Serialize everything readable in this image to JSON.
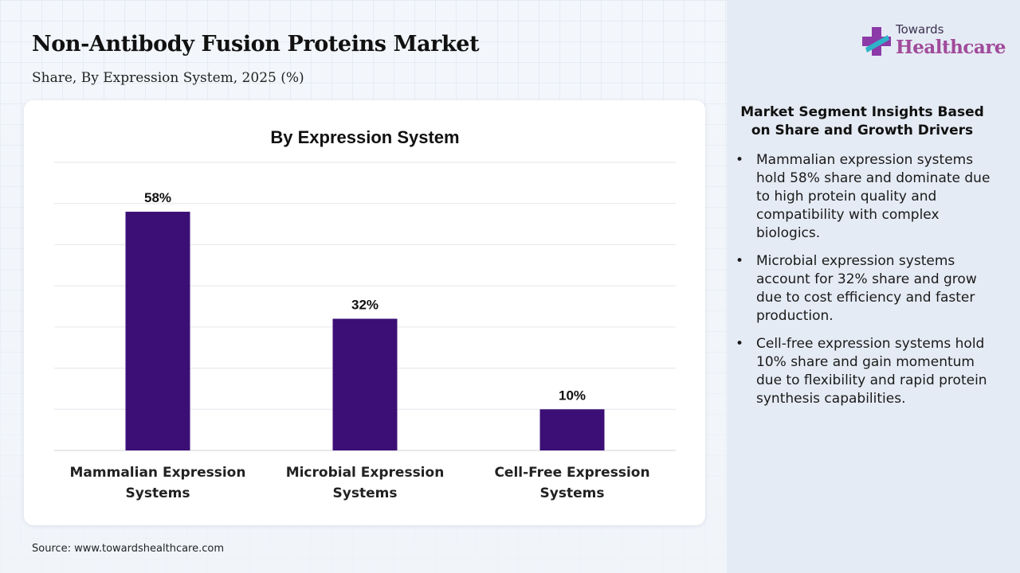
{
  "header": {
    "title": "Non-Antibody Fusion Proteins Market",
    "subtitle": "Share, By Expression System, 2025 (%)"
  },
  "logo": {
    "top": "Towards",
    "main": "Healthcare"
  },
  "colors": {
    "bar": "#3c0f76",
    "right_panel": "#e5ebf4",
    "logo_accent": "#a04a9a"
  },
  "chart_data": {
    "type": "bar",
    "title": "By Expression System",
    "xlabel": "",
    "ylabel": "",
    "categories": [
      "Mammalian Expression Systems",
      "Microbial Expression Systems",
      "Cell-Free Expression Systems"
    ],
    "category_lines": [
      [
        "Mammalian Expression",
        "Systems"
      ],
      [
        "Microbial Expression",
        "Systems"
      ],
      [
        "Cell-Free Expression",
        "Systems"
      ]
    ],
    "values": [
      58,
      32,
      10
    ],
    "data_labels": [
      "58%",
      "32%",
      "10%"
    ],
    "ylim": [
      0,
      70
    ],
    "grid": true,
    "y_tick_labels_shown": false
  },
  "insights": {
    "title": "Market Segment Insights Based on Share and Growth Drivers",
    "bullet": "•",
    "items": [
      "Mammalian expression systems hold 58% share and dominate due to high protein quality and compatibility with complex biologics.",
      "Microbial expression systems account for 32% share and grow due to cost efficiency and faster production.",
      "Cell-free expression systems hold 10% share and gain momentum due to flexibility and rapid protein synthesis capabilities."
    ]
  },
  "source": "Source: www.towardshealthcare.com"
}
